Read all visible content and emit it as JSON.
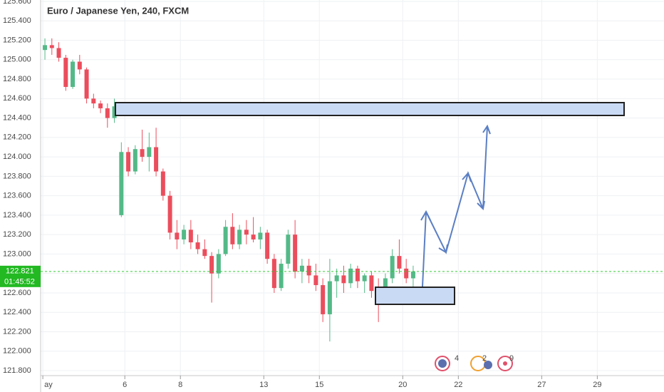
{
  "chart_data": {
    "type": "candlestick",
    "title": "Euro / Japanese Yen, 240, FXCM",
    "x": [
      -2.875,
      -2.625,
      -2.375,
      -2.125,
      -1.875,
      -1.625,
      -1.375,
      -1.125,
      -0.875,
      -0.625,
      -0.375,
      -0.125,
      0.125,
      0.375,
      0.625,
      0.875,
      1.125,
      1.375,
      1.625,
      1.875,
      2.125,
      2.375,
      2.625,
      2.875,
      3.125,
      3.375,
      3.625,
      3.875,
      4.125,
      4.375,
      4.625,
      4.875,
      5.125,
      5.375,
      5.625,
      5.875,
      6.125,
      6.375,
      6.625,
      6.875,
      7.125,
      7.375,
      7.625,
      7.875,
      8.125,
      8.375,
      8.625,
      8.875,
      9.125,
      9.375,
      9.625,
      9.875,
      10.125,
      10.375
    ],
    "open": [
      125.1,
      125.15,
      125.12,
      125.02,
      124.72,
      124.98,
      124.9,
      124.6,
      124.55,
      124.5,
      124.4,
      123.4,
      124.05,
      123.85,
      124.08,
      124.0,
      124.1,
      123.85,
      123.6,
      123.22,
      123.15,
      123.25,
      123.12,
      123.05,
      122.98,
      122.8,
      123.0,
      123.28,
      123.1,
      123.25,
      123.2,
      123.15,
      123.22,
      122.95,
      122.65,
      122.9,
      123.2,
      122.82,
      122.88,
      122.78,
      122.68,
      122.38,
      122.72,
      122.78,
      122.7,
      122.85,
      122.72,
      122.78,
      122.62,
      122.55,
      122.75,
      122.98,
      122.85,
      122.75
    ],
    "high": [
      125.22,
      125.22,
      125.18,
      125.05,
      125.0,
      125.05,
      124.92,
      124.65,
      124.58,
      124.55,
      124.6,
      124.15,
      124.1,
      124.12,
      124.28,
      124.25,
      124.3,
      123.88,
      123.65,
      123.35,
      123.3,
      123.35,
      123.2,
      123.15,
      123.02,
      123.05,
      123.35,
      123.42,
      123.3,
      123.35,
      123.38,
      123.28,
      123.25,
      123.0,
      122.95,
      123.25,
      123.35,
      122.95,
      122.95,
      122.9,
      122.75,
      122.95,
      122.85,
      122.88,
      122.9,
      122.88,
      122.8,
      122.82,
      122.75,
      122.8,
      123.05,
      123.15,
      122.95,
      122.88
    ],
    "low": [
      125.0,
      125.05,
      124.98,
      124.68,
      124.7,
      124.85,
      124.55,
      124.5,
      124.45,
      124.3,
      124.35,
      123.38,
      123.8,
      123.82,
      123.95,
      123.85,
      123.8,
      123.55,
      123.15,
      123.05,
      123.1,
      123.05,
      123.0,
      122.95,
      122.5,
      122.75,
      122.98,
      123.05,
      123.05,
      123.1,
      123.12,
      123.05,
      122.9,
      122.6,
      122.62,
      122.85,
      122.75,
      122.7,
      122.7,
      122.62,
      122.3,
      122.1,
      122.55,
      122.6,
      122.65,
      122.65,
      122.6,
      122.55,
      122.3,
      122.5,
      122.7,
      122.8,
      122.7,
      122.62
    ],
    "close": [
      125.15,
      125.12,
      125.02,
      124.72,
      124.98,
      124.9,
      124.6,
      124.55,
      124.5,
      124.4,
      124.52,
      124.05,
      123.85,
      124.08,
      124.0,
      124.1,
      123.85,
      123.6,
      123.22,
      123.15,
      123.25,
      123.12,
      123.05,
      122.98,
      122.8,
      123.0,
      123.28,
      123.1,
      123.25,
      123.2,
      123.15,
      123.22,
      122.95,
      122.65,
      122.9,
      123.2,
      122.82,
      122.88,
      122.78,
      122.68,
      122.38,
      122.72,
      122.78,
      122.7,
      122.85,
      122.72,
      122.78,
      122.62,
      122.55,
      122.75,
      122.98,
      122.85,
      122.75,
      122.82
    ],
    "up_color": "#53b987",
    "down_color": "#eb4d5c",
    "ylim": [
      121.8,
      125.6
    ],
    "yticks": [
      {
        "value": 121.8,
        "label": "121.800"
      },
      {
        "value": 122.0,
        "label": "122.000"
      },
      {
        "value": 122.2,
        "label": "122.200"
      },
      {
        "value": 122.4,
        "label": "122.400"
      },
      {
        "value": 122.6,
        "label": "122.600"
      },
      {
        "value": 122.8,
        "label": "122.800"
      },
      {
        "value": 123.0,
        "label": "123.000"
      },
      {
        "value": 123.2,
        "label": "123.200"
      },
      {
        "value": 123.4,
        "label": "123.400"
      },
      {
        "value": 123.6,
        "label": "123.600"
      },
      {
        "value": 123.8,
        "label": "123.800"
      },
      {
        "value": 124.0,
        "label": "124.000"
      },
      {
        "value": 124.2,
        "label": "124.200"
      },
      {
        "value": 124.4,
        "label": "124.400"
      },
      {
        "value": 124.6,
        "label": "124.600"
      },
      {
        "value": 124.8,
        "label": "124.800"
      },
      {
        "value": 125.0,
        "label": "125.000"
      },
      {
        "value": 125.2,
        "label": "125.200"
      },
      {
        "value": 125.4,
        "label": "125.400"
      },
      {
        "value": 125.6,
        "label": "125.600"
      }
    ],
    "xlim": [
      -3.03,
      19.4
    ],
    "xticks": [
      {
        "value": -2.95,
        "label": "ay"
      },
      {
        "value": 0,
        "label": "6"
      },
      {
        "value": 2,
        "label": "8"
      },
      {
        "value": 5,
        "label": "13"
      },
      {
        "value": 7,
        "label": "15"
      },
      {
        "value": 10,
        "label": "20"
      },
      {
        "value": 12,
        "label": "22"
      },
      {
        "value": 15,
        "label": "27"
      },
      {
        "value": 17,
        "label": "29"
      }
    ],
    "grid": true,
    "last_price": {
      "value": 122.821,
      "label": "122.821"
    },
    "countdown": "01:45:52",
    "event_counts": [
      "4",
      "2",
      "9"
    ]
  }
}
